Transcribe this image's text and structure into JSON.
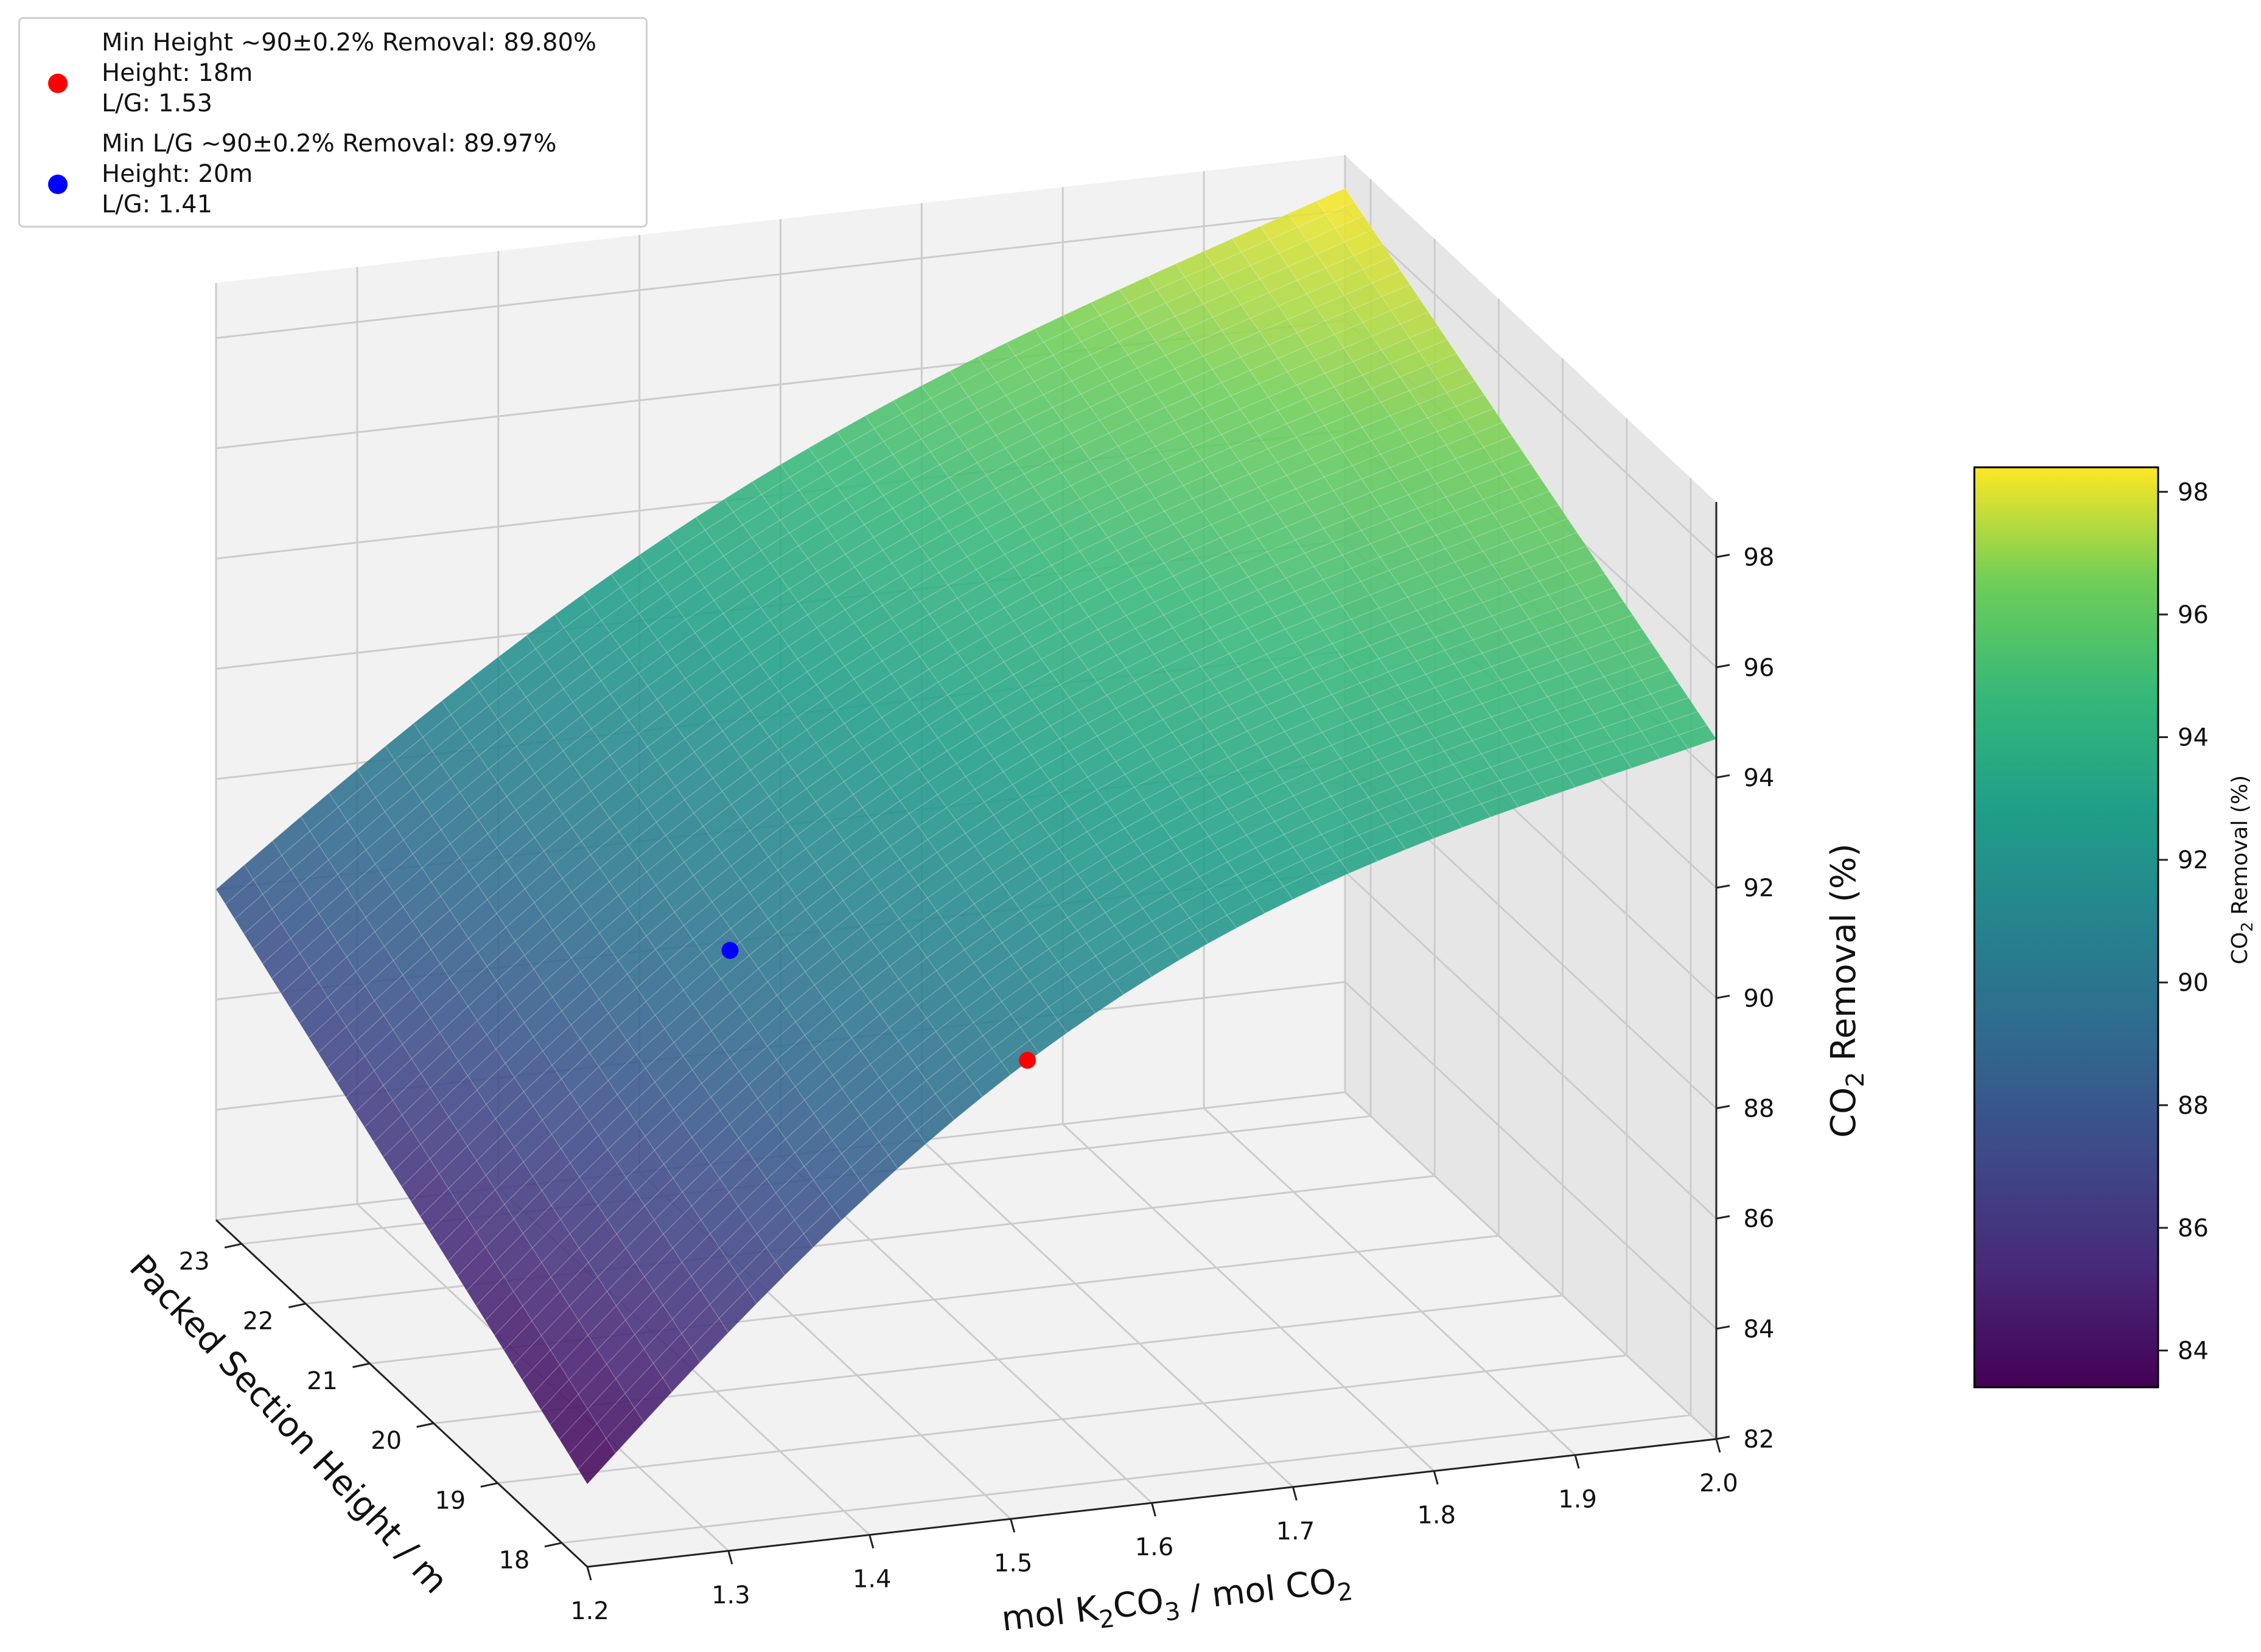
{
  "chart_data": {
    "type": "surface3d",
    "x_axis": {
      "label_parts": [
        "mol K",
        "2",
        "CO",
        "3",
        " / mol CO",
        "2"
      ],
      "ticks": [
        1.2,
        1.3,
        1.4,
        1.5,
        1.6,
        1.7,
        1.8,
        1.9,
        2.0
      ],
      "tick_labels": [
        "1.2",
        "1.3",
        "1.4",
        "1.5",
        "1.6",
        "1.7",
        "1.8",
        "1.9",
        "2.0"
      ],
      "range": [
        1.2,
        2.0
      ]
    },
    "y_axis": {
      "label": "Packed Section Height / m",
      "ticks": [
        18,
        19,
        20,
        21,
        22,
        23
      ],
      "tick_labels": [
        "18",
        "19",
        "20",
        "21",
        "22",
        "23"
      ],
      "range": [
        17.6,
        23.4
      ]
    },
    "z_axis": {
      "label_parts": [
        "CO",
        "2",
        " Removal (%)"
      ],
      "ticks": [
        82,
        84,
        86,
        88,
        90,
        92,
        94,
        96,
        98
      ],
      "tick_labels": [
        "82",
        "84",
        "86",
        "88",
        "90",
        "92",
        "94",
        "96",
        "98"
      ],
      "range": [
        82,
        99
      ]
    },
    "surface_corners": {
      "x1.2_y17.6": 83.5,
      "x1.2_y23.4": 88.0,
      "x2.0_y17.6": 94.7,
      "x2.0_y23.4": 98.4
    },
    "colormap": "viridis",
    "colorbar": {
      "label_parts": [
        "CO",
        "2",
        " Removal (%)"
      ],
      "ticks": [
        84,
        86,
        88,
        90,
        92,
        94,
        96,
        98
      ],
      "tick_labels": [
        "84",
        "86",
        "88",
        "90",
        "92",
        "94",
        "96",
        "98"
      ],
      "range": [
        83.4,
        98.4
      ]
    },
    "points": [
      {
        "name": "min-height",
        "color": "#ff0000",
        "x": 1.53,
        "y": 18,
        "z": 89.8,
        "legend_lines": [
          "Min Height ~90±0.2% Removal: 89.80%",
          "Height: 18m",
          "L/G: 1.53"
        ]
      },
      {
        "name": "min-lg",
        "color": "#0000ff",
        "x": 1.41,
        "y": 20,
        "z": 89.97,
        "legend_lines": [
          "Min L/G ~90±0.2% Removal: 89.97%",
          "Height: 20m",
          "L/G: 1.41"
        ]
      }
    ],
    "legend_placement": "top-left",
    "grid": true
  }
}
